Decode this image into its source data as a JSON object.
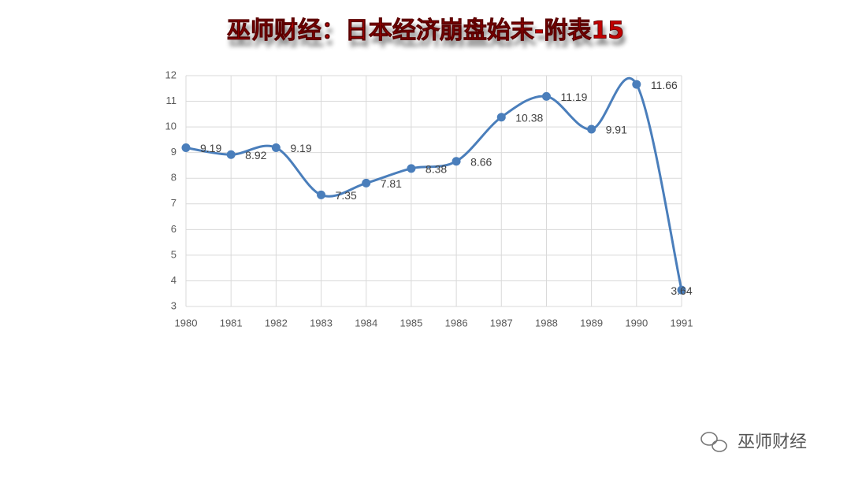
{
  "chart_data": {
    "type": "line",
    "title": "巫师财经：日本经济崩盘始末-附表15",
    "watermark": "巫师财经",
    "categories": [
      "1980",
      "1981",
      "1982",
      "1983",
      "1984",
      "1985",
      "1986",
      "1987",
      "1988",
      "1989",
      "1990",
      "1991"
    ],
    "series": [
      {
        "name": "",
        "color": "#4a7ebb",
        "values": [
          9.19,
          8.92,
          9.19,
          7.35,
          7.81,
          8.38,
          8.66,
          10.38,
          11.19,
          9.91,
          11.66,
          3.64
        ]
      }
    ],
    "ylim": [
      3,
      12
    ],
    "yticks": [
      3,
      4,
      5,
      6,
      7,
      8,
      9,
      10,
      11,
      12
    ],
    "grid": true
  }
}
